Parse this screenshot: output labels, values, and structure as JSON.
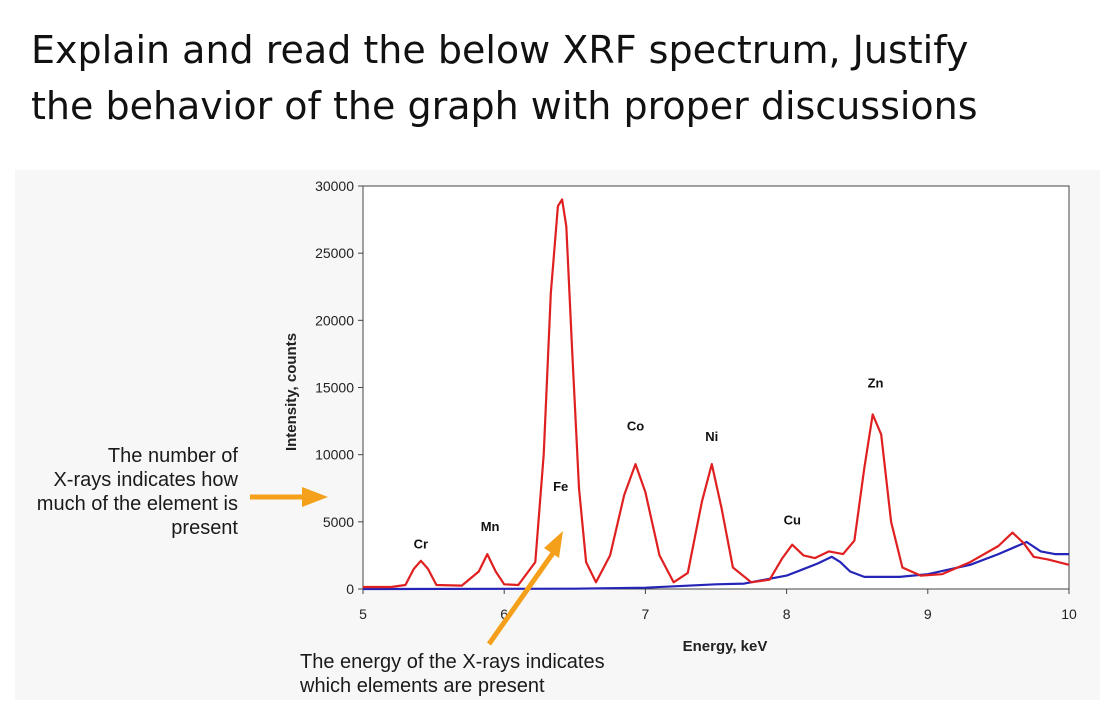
{
  "question": {
    "lines": [
      "Explain and read the below XRF spectrum, Justify",
      "the behavior of the graph with proper discussions"
    ]
  },
  "annotations": {
    "left_lines": [
      "The number of",
      "X-rays indicates how",
      "much of the element is",
      "present"
    ],
    "bottom_lines": [
      "The energy of the X-rays indicates",
      "which elements are present"
    ],
    "arrow_color": "#f5a01a"
  },
  "chart_data": {
    "type": "line",
    "xlabel": "Energy, keV",
    "ylabel": "Intensity, counts",
    "xlim": [
      5,
      10
    ],
    "ylim": [
      0,
      30000
    ],
    "x_ticks": [
      "5",
      "6",
      "7",
      "8",
      "9",
      "10"
    ],
    "y_ticks": [
      "0",
      "5000",
      "10000",
      "15000",
      "20000",
      "25000",
      "30000"
    ],
    "grid": false,
    "peak_labels": [
      {
        "label": "Cr",
        "x": 5.41,
        "y": 3000
      },
      {
        "label": "Mn",
        "x": 5.9,
        "y": 4300
      },
      {
        "label": "Fe",
        "x": 6.4,
        "y": 7300
      },
      {
        "label": "Co",
        "x": 6.93,
        "y": 11800
      },
      {
        "label": "Ni",
        "x": 7.47,
        "y": 11000
      },
      {
        "label": "Cu",
        "x": 8.04,
        "y": 4800
      },
      {
        "label": "Zn",
        "x": 8.63,
        "y": 15000
      }
    ],
    "series": [
      {
        "color": "#e02020",
        "points": [
          [
            5.0,
            150
          ],
          [
            5.2,
            150
          ],
          [
            5.3,
            300
          ],
          [
            5.36,
            1500
          ],
          [
            5.41,
            2100
          ],
          [
            5.46,
            1500
          ],
          [
            5.52,
            300
          ],
          [
            5.7,
            250
          ],
          [
            5.82,
            1300
          ],
          [
            5.88,
            2600
          ],
          [
            5.94,
            1300
          ],
          [
            6.0,
            350
          ],
          [
            6.1,
            300
          ],
          [
            6.22,
            2000
          ],
          [
            6.28,
            10000
          ],
          [
            6.33,
            22000
          ],
          [
            6.38,
            28500
          ],
          [
            6.41,
            29000
          ],
          [
            6.44,
            27000
          ],
          [
            6.48,
            18000
          ],
          [
            6.53,
            7500
          ],
          [
            6.58,
            2000
          ],
          [
            6.65,
            500
          ],
          [
            6.75,
            2500
          ],
          [
            6.85,
            7000
          ],
          [
            6.93,
            9300
          ],
          [
            7.0,
            7200
          ],
          [
            7.1,
            2500
          ],
          [
            7.2,
            500
          ],
          [
            7.3,
            1200
          ],
          [
            7.4,
            6500
          ],
          [
            7.47,
            9300
          ],
          [
            7.54,
            6000
          ],
          [
            7.62,
            1600
          ],
          [
            7.75,
            500
          ],
          [
            7.88,
            700
          ],
          [
            7.97,
            2300
          ],
          [
            8.04,
            3300
          ],
          [
            8.12,
            2500
          ],
          [
            8.2,
            2300
          ],
          [
            8.3,
            2800
          ],
          [
            8.4,
            2600
          ],
          [
            8.48,
            3600
          ],
          [
            8.55,
            9000
          ],
          [
            8.61,
            13000
          ],
          [
            8.67,
            11500
          ],
          [
            8.74,
            5000
          ],
          [
            8.82,
            1600
          ],
          [
            8.95,
            1000
          ],
          [
            9.1,
            1100
          ],
          [
            9.3,
            2000
          ],
          [
            9.5,
            3200
          ],
          [
            9.6,
            4200
          ],
          [
            9.68,
            3400
          ],
          [
            9.75,
            2400
          ],
          [
            9.85,
            2200
          ],
          [
            10.0,
            1800
          ]
        ]
      },
      {
        "color": "#2424b8",
        "points": [
          [
            5.0,
            0
          ],
          [
            6.5,
            20
          ],
          [
            7.0,
            100
          ],
          [
            7.5,
            350
          ],
          [
            7.7,
            400
          ],
          [
            7.85,
            700
          ],
          [
            8.0,
            1000
          ],
          [
            8.1,
            1400
          ],
          [
            8.22,
            1900
          ],
          [
            8.32,
            2400
          ],
          [
            8.38,
            2000
          ],
          [
            8.45,
            1300
          ],
          [
            8.55,
            900
          ],
          [
            8.8,
            900
          ],
          [
            9.0,
            1100
          ],
          [
            9.3,
            1800
          ],
          [
            9.5,
            2600
          ],
          [
            9.7,
            3500
          ],
          [
            9.8,
            2800
          ],
          [
            9.9,
            2600
          ],
          [
            10.0,
            2600
          ]
        ]
      }
    ]
  }
}
